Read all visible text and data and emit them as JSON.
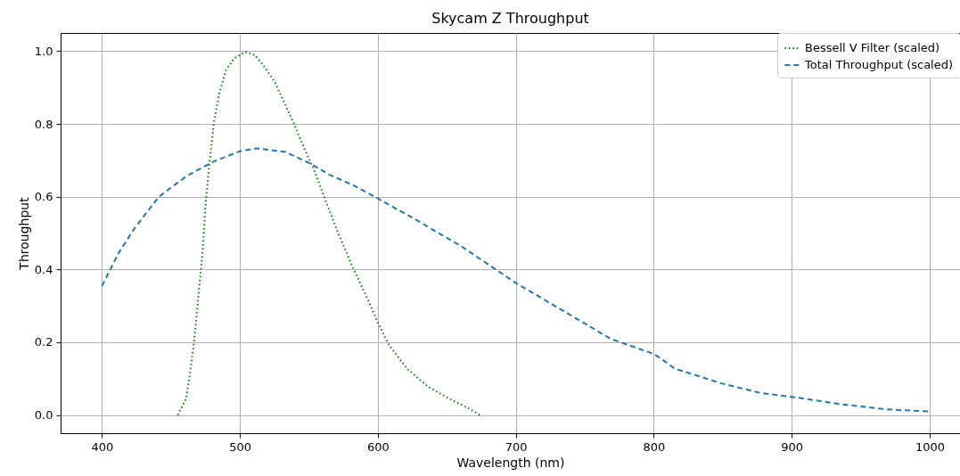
{
  "chart_data": {
    "type": "line",
    "title": "Skycam Z Throughput",
    "xlabel": "Wavelength (nm)",
    "ylabel": "Throughput",
    "xlim": [
      370,
      1022
    ],
    "ylim": [
      -0.05,
      1.05
    ],
    "xticks": [
      400,
      500,
      600,
      700,
      800,
      900,
      1000
    ],
    "yticks": [
      {
        "value": 0,
        "label": "0.0"
      },
      0.2,
      0.4,
      0.6,
      0.8,
      {
        "value": 1,
        "label": "1.0"
      }
    ],
    "grid": true,
    "legend": "top right",
    "series": [
      {
        "name": "Bessell V Filter (scaled)",
        "color": "#008000",
        "line_style": "dotted",
        "x": [
          455,
          461,
          464,
          467,
          470,
          473,
          475,
          478,
          481,
          485,
          490,
          496,
          504,
          511,
          517,
          525,
          532,
          539,
          547,
          554,
          561,
          571,
          582,
          593,
          600,
          608,
          621,
          636,
          651,
          664,
          674
        ],
        "values": [
          0,
          0.046,
          0.12,
          0.209,
          0.331,
          0.453,
          0.575,
          0.697,
          0.802,
          0.884,
          0.949,
          0.981,
          0.998,
          0.989,
          0.961,
          0.917,
          0.86,
          0.802,
          0.729,
          0.672,
          0.6,
          0.502,
          0.404,
          0.315,
          0.254,
          0.193,
          0.128,
          0.079,
          0.046,
          0.022,
          0
        ]
      },
      {
        "name": "Total Throughput (scaled)",
        "color": "#1f77b4",
        "line_style": "dashed",
        "x": [
          400,
          412,
          423,
          441,
          461,
          481,
          500,
          512,
          533,
          550,
          565,
          582,
          600,
          627,
          660,
          700,
          731,
          769,
          800,
          805,
          815,
          849,
          877,
          900,
          935,
          968,
          999
        ],
        "values": [
          0.355,
          0.445,
          0.51,
          0.599,
          0.656,
          0.697,
          0.725,
          0.733,
          0.723,
          0.693,
          0.66,
          0.632,
          0.595,
          0.538,
          0.465,
          0.363,
          0.294,
          0.209,
          0.168,
          0.156,
          0.128,
          0.087,
          0.061,
          0.05,
          0.03,
          0.016,
          0.01
        ]
      }
    ]
  }
}
